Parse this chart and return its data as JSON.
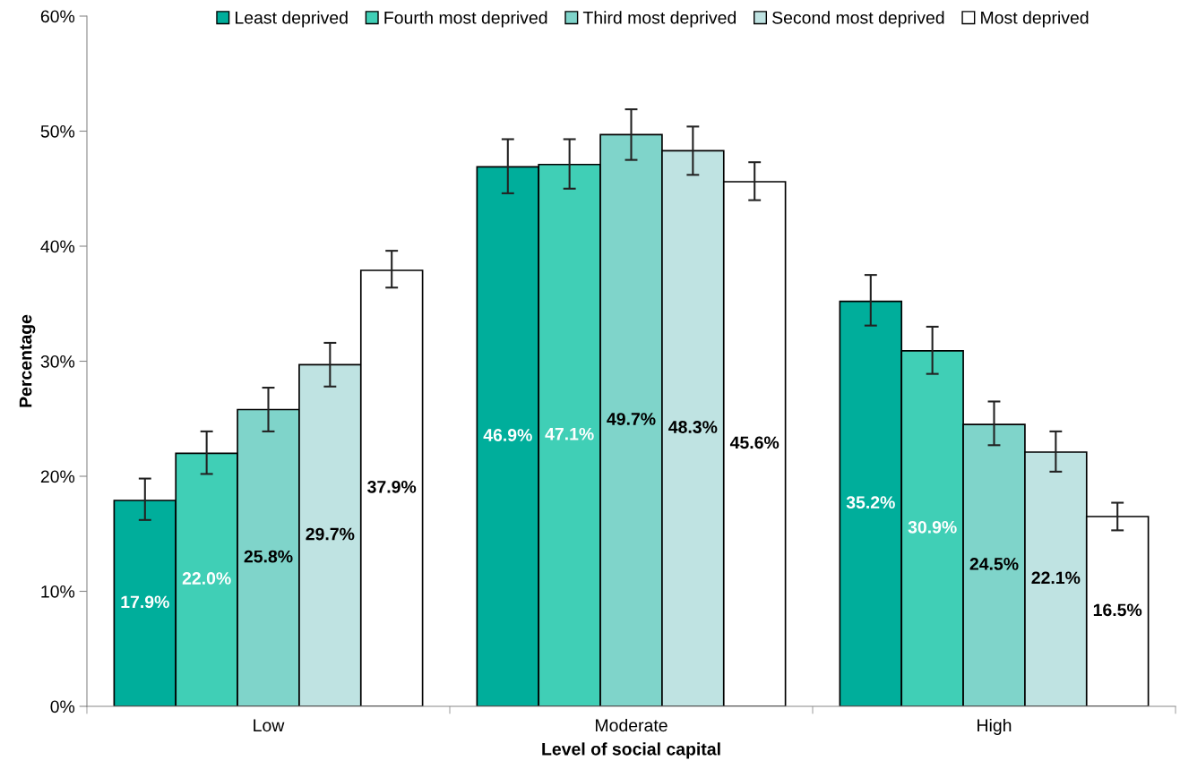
{
  "chart_data": {
    "type": "bar",
    "xlabel": "Level of social capital",
    "ylabel": "Percentage",
    "categories": [
      "Low",
      "Moderate",
      "High"
    ],
    "series": [
      {
        "name": "Least deprived",
        "color": "#00ae9b",
        "values": [
          17.9,
          46.9,
          35.2
        ],
        "value_labels": [
          "17.9%",
          "46.9%",
          "35.2%"
        ],
        "errors": [
          [
            16.2,
            19.8
          ],
          [
            44.6,
            49.3
          ],
          [
            33.1,
            37.5
          ]
        ]
      },
      {
        "name": "Fourth most deprived",
        "color": "#40cfb6",
        "values": [
          22.0,
          47.1,
          30.9
        ],
        "value_labels": [
          "22.0%",
          "47.1%",
          "30.9%"
        ],
        "errors": [
          [
            20.2,
            23.9
          ],
          [
            45.0,
            49.3
          ],
          [
            28.9,
            33.0
          ]
        ]
      },
      {
        "name": "Third most deprived",
        "color": "#7fd4ca",
        "values": [
          25.8,
          49.7,
          24.5
        ],
        "value_labels": [
          "25.8%",
          "49.7%",
          "24.5%"
        ],
        "errors": [
          [
            23.9,
            27.7
          ],
          [
            47.5,
            51.9
          ],
          [
            22.7,
            26.5
          ]
        ]
      },
      {
        "name": "Second most deprived",
        "color": "#bfe3e2",
        "values": [
          29.7,
          48.3,
          22.1
        ],
        "value_labels": [
          "29.7%",
          "48.3%",
          "22.1%"
        ],
        "errors": [
          [
            27.8,
            31.6
          ],
          [
            46.2,
            50.4
          ],
          [
            20.4,
            23.9
          ]
        ]
      },
      {
        "name": "Most deprived",
        "color": "#ffffff",
        "values": [
          37.9,
          45.6,
          16.5
        ],
        "value_labels": [
          "37.9%",
          "45.6%",
          "16.5%"
        ],
        "errors": [
          [
            36.4,
            39.6
          ],
          [
            44.0,
            47.3
          ],
          [
            15.3,
            17.7
          ]
        ]
      }
    ],
    "ylim": [
      0,
      60
    ],
    "yticks": [
      {
        "value": 0,
        "label": "0%"
      },
      {
        "value": 10,
        "label": "10%"
      },
      {
        "value": 20,
        "label": "20%"
      },
      {
        "value": 30,
        "label": "30%"
      },
      {
        "value": 40,
        "label": "40%"
      },
      {
        "value": 50,
        "label": "50%"
      },
      {
        "value": 60,
        "label": "60%"
      }
    ],
    "grid": false,
    "legend": "top"
  }
}
